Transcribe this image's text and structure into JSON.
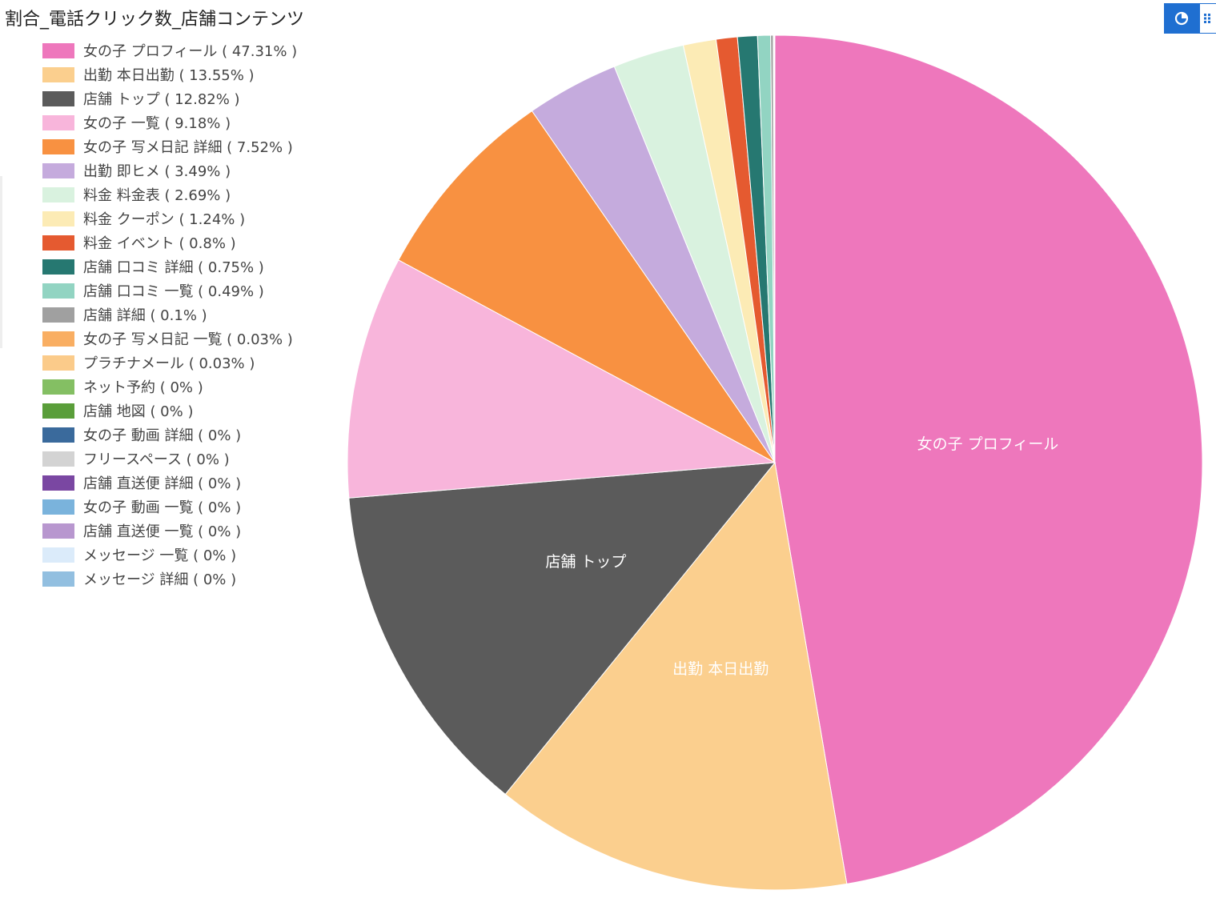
{
  "chart_data": {
    "type": "pie",
    "title": "割合_電話クリック数_店舗コンテンツ",
    "legend_position": "top-left",
    "slices": [
      {
        "label": "女の子 プロフィール",
        "value": 47.31,
        "legend_text": "女の子 プロフィール ( 47.31% )",
        "color": "#EE77BC",
        "show_label": true
      },
      {
        "label": "出勤 本日出勤",
        "value": 13.55,
        "legend_text": "出勤 本日出勤 ( 13.55% )",
        "color": "#FBCF8E",
        "show_label": true
      },
      {
        "label": "店舗 トップ",
        "value": 12.82,
        "legend_text": "店舗 トップ ( 12.82% )",
        "color": "#5B5B5B",
        "show_label": true
      },
      {
        "label": "女の子 一覧",
        "value": 9.18,
        "legend_text": "女の子 一覧 ( 9.18% )",
        "color": "#F8B5DB",
        "show_label": false
      },
      {
        "label": "女の子 写メ日記 詳細",
        "value": 7.52,
        "legend_text": "女の子 写メ日記 詳細 ( 7.52% )",
        "color": "#F89141",
        "show_label": false
      },
      {
        "label": "出勤 即ヒメ",
        "value": 3.49,
        "legend_text": "出勤 即ヒメ ( 3.49% )",
        "color": "#C5ABDD",
        "show_label": false
      },
      {
        "label": "料金 料金表",
        "value": 2.69,
        "legend_text": "料金 料金表 ( 2.69% )",
        "color": "#D9F2DF",
        "show_label": false
      },
      {
        "label": "料金 クーポン",
        "value": 1.24,
        "legend_text": "料金 クーポン ( 1.24% )",
        "color": "#FCEBB5",
        "show_label": false
      },
      {
        "label": "料金 イベント",
        "value": 0.8,
        "legend_text": "料金 イベント ( 0.8% )",
        "color": "#E55A30",
        "show_label": false
      },
      {
        "label": "店舗 口コミ 詳細",
        "value": 0.75,
        "legend_text": "店舗 口コミ 詳細 ( 0.75% )",
        "color": "#267871",
        "show_label": false
      },
      {
        "label": "店舗 口コミ 一覧",
        "value": 0.49,
        "legend_text": "店舗 口コミ 一覧 ( 0.49% )",
        "color": "#92D4C2",
        "show_label": false
      },
      {
        "label": "店舗 詳細",
        "value": 0.1,
        "legend_text": "店舗 詳細 ( 0.1% )",
        "color": "#A0A0A0",
        "show_label": false
      },
      {
        "label": "女の子 写メ日記 一覧",
        "value": 0.03,
        "legend_text": "女の子 写メ日記 一覧 ( 0.03% )",
        "color": "#F9AE62",
        "show_label": false
      },
      {
        "label": "プラチナメール",
        "value": 0.03,
        "legend_text": "プラチナメール ( 0.03% )",
        "color": "#FBCB8A",
        "show_label": false
      },
      {
        "label": "ネット予約",
        "value": 0,
        "legend_text": "ネット予約 ( 0% )",
        "color": "#84BF63",
        "show_label": false
      },
      {
        "label": "店舗 地図",
        "value": 0,
        "legend_text": "店舗 地図 ( 0% )",
        "color": "#5A9E3A",
        "show_label": false
      },
      {
        "label": "女の子 動画 詳細",
        "value": 0,
        "legend_text": "女の子 動画 詳細 ( 0% )",
        "color": "#3A6A9C",
        "show_label": false
      },
      {
        "label": "フリースペース",
        "value": 0,
        "legend_text": "フリースペース ( 0% )",
        "color": "#D3D3D3",
        "show_label": false
      },
      {
        "label": "店舗 直送便 詳細",
        "value": 0,
        "legend_text": "店舗 直送便 詳細 ( 0% )",
        "color": "#7A47A2",
        "show_label": false
      },
      {
        "label": "女の子 動画 一覧",
        "value": 0,
        "legend_text": "女の子 動画 一覧 ( 0% )",
        "color": "#7AB3DC",
        "show_label": false
      },
      {
        "label": "店舗 直送便 一覧",
        "value": 0,
        "legend_text": "店舗 直送便 一覧 ( 0% )",
        "color": "#B897CF",
        "show_label": false
      },
      {
        "label": "メッセージ 一覧",
        "value": 0,
        "legend_text": "メッセージ 一覧 ( 0% )",
        "color": "#DBEBFA",
        "show_label": false
      },
      {
        "label": "メッセージ 詳細",
        "value": 0,
        "legend_text": "メッセージ 詳細 ( 0% )",
        "color": "#92BFE0",
        "show_label": false
      }
    ]
  },
  "toolbar": {
    "pie_view_icon": "pie-chart-icon",
    "grid_view_icon": "grid-icon",
    "active_color": "#1f6fd1"
  }
}
